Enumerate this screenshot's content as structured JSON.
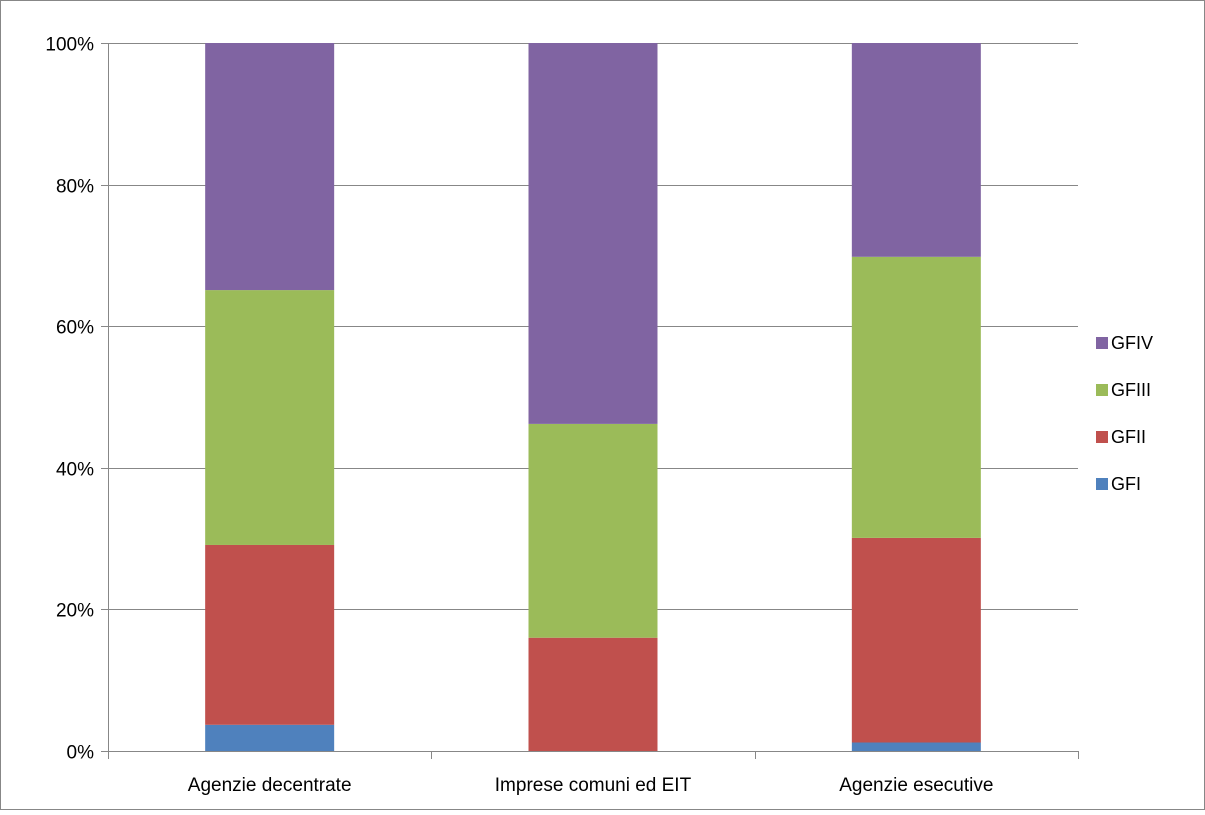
{
  "chart_data": {
    "type": "bar",
    "stacked": true,
    "percent_stacked": true,
    "title": "",
    "xlabel": "",
    "ylabel": "",
    "categories": [
      "Agenzie decentrate",
      "Imprese comuni ed EIT",
      "Agenzie esecutive"
    ],
    "series": [
      {
        "name": "GFI",
        "color": "#4F81BD",
        "values": [
          3.7,
          0.0,
          1.2
        ]
      },
      {
        "name": "GFII",
        "color": "#C0504D",
        "values": [
          25.4,
          16.0,
          28.9
        ]
      },
      {
        "name": "GFIII",
        "color": "#9BBB59",
        "values": [
          36.0,
          30.2,
          39.7
        ]
      },
      {
        "name": "GFIV",
        "color": "#8064A2",
        "values": [
          34.9,
          53.8,
          30.2
        ]
      }
    ],
    "ylim": [
      0,
      100
    ],
    "yticks": [
      0,
      20,
      40,
      60,
      80,
      100
    ],
    "ytick_labels": [
      "0%",
      "20%",
      "40%",
      "60%",
      "80%",
      "100%"
    ],
    "grid": true,
    "legend_position": "right",
    "legend_order": [
      "GFIV",
      "GFIII",
      "GFII",
      "GFI"
    ],
    "colors": {
      "grid": "#878787",
      "axis": "#878787",
      "border": "#878787"
    }
  }
}
